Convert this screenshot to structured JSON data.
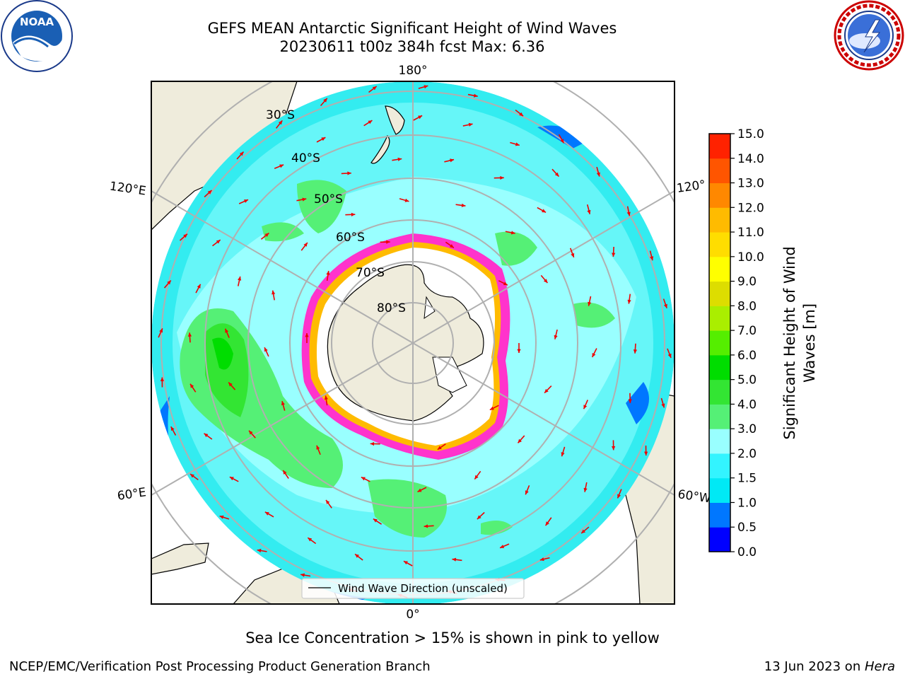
{
  "header": {
    "title_line1": "GEFS MEAN Antarctic Significant Height of Wind Waves",
    "title_line2": "20230611 t00z 384h fcst   Max: 6.36"
  },
  "logos": {
    "left": {
      "name": "noaa-logo",
      "text": "NOAA"
    },
    "right": {
      "name": "national-weather-service-logo"
    }
  },
  "map": {
    "projection": "south-polar-stereographic",
    "longitude_labels": {
      "top": "180°",
      "bottom": "0°",
      "upper_left": "120°E",
      "lower_left": "60°E",
      "upper_right": "120°",
      "lower_right": "60°W"
    },
    "latitude_labels": [
      "30°S",
      "40°S",
      "50°S",
      "60°S",
      "70°S",
      "80°S"
    ],
    "legend_label": "Wind Wave Direction (unscaled)",
    "colors": {
      "land": "#efecdc",
      "ocean_low": "#33ecf0",
      "ocean_mid": "#99ffff",
      "ocean_high": "#55f076",
      "ice": "#ff33cc",
      "arrow": "#ee0000",
      "grid": "#b0b0b0"
    }
  },
  "colorbar": {
    "label": "Significant Height of Wind Waves [m]",
    "label_line1": "Significant Height of Wind",
    "label_line2": "Waves [m]",
    "ticks": [
      "0.0",
      "0.5",
      "1.0",
      "1.5",
      "2.0",
      "3.0",
      "4.0",
      "5.0",
      "6.0",
      "7.0",
      "8.0",
      "9.0",
      "10.0",
      "11.0",
      "12.0",
      "13.0",
      "14.0",
      "15.0"
    ],
    "colors": [
      "#0000ff",
      "#0077ff",
      "#00e9f5",
      "#33f4ff",
      "#99ffff",
      "#55f076",
      "#33e533",
      "#00dd00",
      "#55ee00",
      "#aaee00",
      "#dddd00",
      "#ffff00",
      "#ffdd00",
      "#ffbb00",
      "#ff8800",
      "#ff5500",
      "#ff2200"
    ]
  },
  "caption": "Sea Ice Concentration > 15% is shown in pink to yellow",
  "footer": {
    "left": "NCEP/EMC/Verification Post Processing Product Generation Branch",
    "right_prefix": "13 Jun 2023 on ",
    "right_machine": "Hera"
  }
}
